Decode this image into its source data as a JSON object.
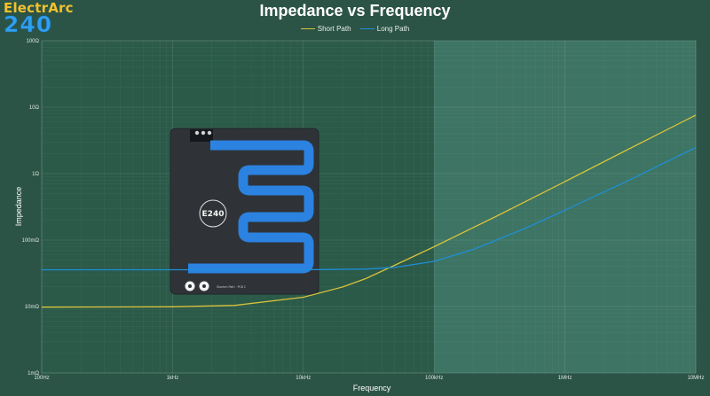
{
  "logo": {
    "line1": "ElectrArc",
    "line2": "240"
  },
  "chart_data": {
    "type": "line",
    "title": "Impedance vs Frequency",
    "xlabel": "Frequency",
    "ylabel": "Impedance",
    "x_scale": "log",
    "y_scale": "log",
    "xlim_hz": [
      100,
      10000000
    ],
    "ylim_ohm": [
      0.001,
      100
    ],
    "x_ticks": [
      {
        "value": 100,
        "label": "100Hz"
      },
      {
        "value": 1000,
        "label": "1kHz"
      },
      {
        "value": 10000,
        "label": "10kHz"
      },
      {
        "value": 100000,
        "label": "100kHz"
      },
      {
        "value": 1000000,
        "label": "1MHz"
      },
      {
        "value": 10000000,
        "label": "10MHz"
      }
    ],
    "y_ticks": [
      {
        "value": 0.001,
        "label": "1mΩ"
      },
      {
        "value": 0.01,
        "label": "10mΩ"
      },
      {
        "value": 0.1,
        "label": "100mΩ"
      },
      {
        "value": 1,
        "label": "1Ω"
      },
      {
        "value": 10,
        "label": "10Ω"
      },
      {
        "value": 100,
        "label": "100Ω"
      }
    ],
    "grid": true,
    "legend_position": "top-center",
    "highlight_region_hz": [
      100000,
      10000000
    ],
    "series": [
      {
        "name": "Short Path",
        "color": "#d8c23a",
        "x": [
          100,
          1000,
          3000,
          10000,
          20000,
          30000,
          50000,
          100000,
          300000,
          1000000,
          3000000,
          10000000
        ],
        "y": [
          0.0098,
          0.0099,
          0.0104,
          0.0138,
          0.0197,
          0.0263,
          0.0418,
          0.0794,
          0.229,
          0.759,
          2.29,
          7.6
        ]
      },
      {
        "name": "Long Path",
        "color": "#1f8fd6",
        "x": [
          100,
          1000,
          10000,
          30000,
          50000,
          100000,
          200000,
          500000,
          1000000,
          3000000,
          10000000
        ],
        "y": [
          0.0357,
          0.0357,
          0.0358,
          0.0367,
          0.0387,
          0.0479,
          0.0724,
          0.151,
          0.282,
          0.776,
          2.47
        ]
      }
    ]
  },
  "pcb": {
    "badge": "E240",
    "caption": "Shorten Path · PCB 1"
  }
}
